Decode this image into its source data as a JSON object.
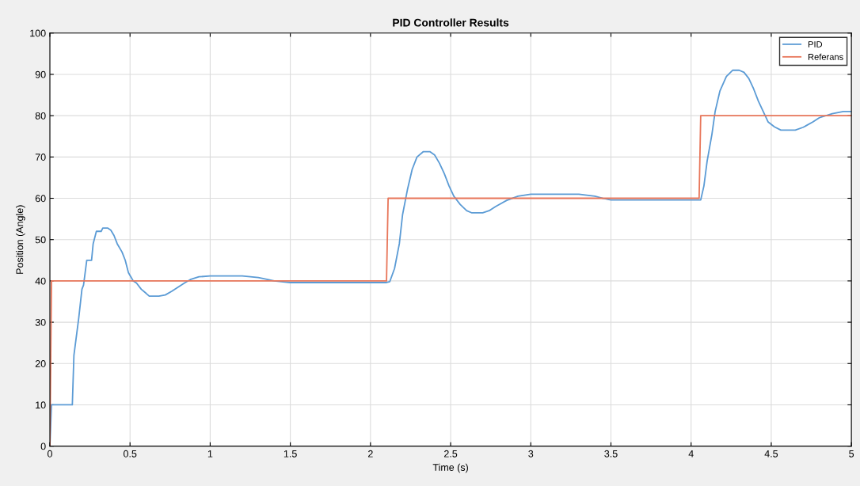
{
  "chart_data": {
    "type": "line",
    "title": "PID Controller Results",
    "xlabel": "Time (s)",
    "ylabel": "Position (Angle)",
    "xlim": [
      0,
      5
    ],
    "xticks": [
      0,
      0.5,
      1,
      1.5,
      2,
      2.5,
      3,
      3.5,
      4,
      4.5,
      5
    ],
    "ylim": [
      0,
      100
    ],
    "yticks": [
      0,
      10,
      20,
      30,
      40,
      50,
      60,
      70,
      80,
      90,
      100
    ],
    "grid": true,
    "legend": "top right",
    "series": [
      {
        "name": "PID",
        "color": "#5b9bd5",
        "x": [
          0,
          0.01,
          0.14,
          0.15,
          0.18,
          0.2,
          0.21,
          0.23,
          0.26,
          0.27,
          0.29,
          0.32,
          0.33,
          0.36,
          0.38,
          0.4,
          0.42,
          0.45,
          0.47,
          0.49,
          0.52,
          0.54,
          0.57,
          0.6,
          0.62,
          0.68,
          0.72,
          0.76,
          0.8,
          0.84,
          0.88,
          0.93,
          1.0,
          1.2,
          1.3,
          1.4,
          1.5,
          2.1,
          2.12,
          2.15,
          2.18,
          2.2,
          2.23,
          2.26,
          2.29,
          2.33,
          2.37,
          2.4,
          2.43,
          2.46,
          2.49,
          2.52,
          2.56,
          2.6,
          2.63,
          2.7,
          2.74,
          2.78,
          2.85,
          2.92,
          3.0,
          3.3,
          3.4,
          3.45,
          3.5,
          4.06,
          4.08,
          4.1,
          4.13,
          4.15,
          4.18,
          4.22,
          4.26,
          4.3,
          4.33,
          4.36,
          4.39,
          4.42,
          4.45,
          4.48,
          4.52,
          4.56,
          4.65,
          4.7,
          4.76,
          4.8,
          4.88,
          4.95,
          5.0
        ],
        "values": [
          0,
          10,
          10,
          22,
          31,
          38,
          39,
          45,
          45,
          49,
          52,
          52,
          52.8,
          52.8,
          52.3,
          51,
          49,
          47,
          45,
          42,
          40,
          39.5,
          38,
          37,
          36.3,
          36.3,
          36.6,
          37.5,
          38.5,
          39.5,
          40.4,
          41,
          41.2,
          41.2,
          40.8,
          40,
          39.6,
          39.6,
          39.8,
          43,
          49,
          56,
          62,
          67,
          70,
          71.3,
          71.3,
          70.5,
          68.5,
          66,
          63,
          60.5,
          58.5,
          57,
          56.5,
          56.5,
          57,
          58,
          59.5,
          60.5,
          61,
          61,
          60.5,
          60,
          59.6,
          59.6,
          63,
          69,
          75.5,
          81,
          86,
          89.5,
          91,
          91,
          90.5,
          89,
          86.5,
          83.5,
          81,
          78.5,
          77.3,
          76.5,
          76.5,
          77.2,
          78.5,
          79.5,
          80.5,
          81,
          81
        ]
      },
      {
        "name": "Referans",
        "color": "#e8765a",
        "x": [
          0,
          0.01,
          2.1,
          2.11,
          4.05,
          4.06,
          5.0
        ],
        "values": [
          0,
          40,
          40,
          60,
          60,
          80,
          80
        ]
      }
    ]
  }
}
